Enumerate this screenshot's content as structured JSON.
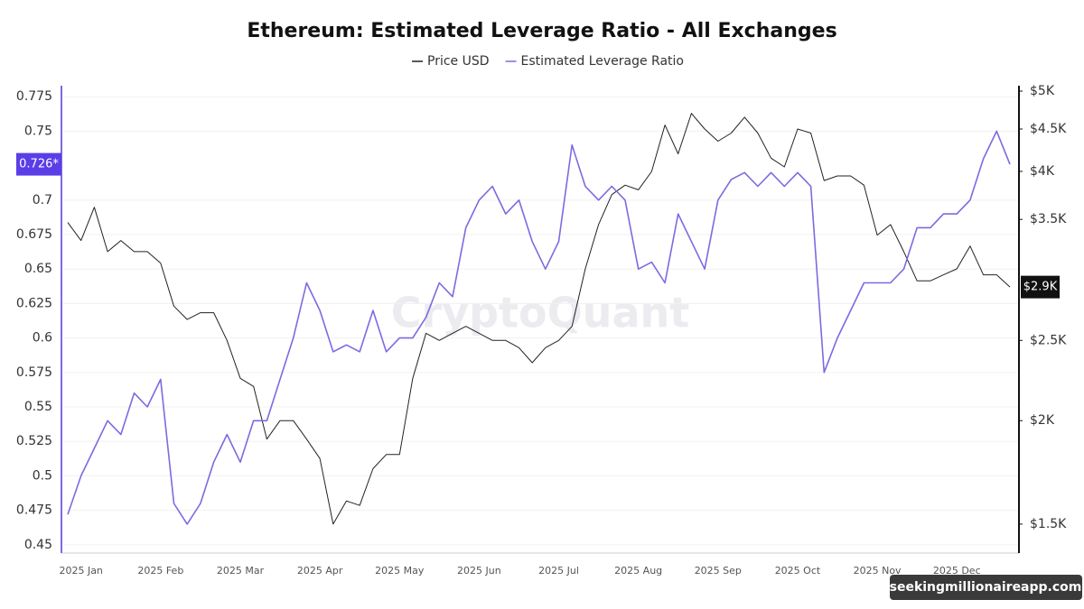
{
  "chart_data": {
    "type": "line",
    "title": "Ethereum: Estimated Leverage Ratio - All Exchanges",
    "watermark": "CryptoQuant",
    "source": "seekingmillionaireapp.com",
    "categories": [
      null,
      "2025 Jan",
      null,
      null,
      null,
      null,
      null,
      "2025 Feb",
      null,
      null,
      null,
      null,
      null,
      "2025 Mar",
      null,
      null,
      null,
      null,
      null,
      "2025 Apr",
      null,
      null,
      null,
      null,
      null,
      "2025 May",
      null,
      null,
      null,
      null,
      null,
      "2025 Jun",
      null,
      null,
      null,
      null,
      null,
      "2025 Jul",
      null,
      null,
      null,
      null,
      null,
      "2025 Aug",
      null,
      null,
      null,
      null,
      null,
      "2025 Sep",
      null,
      null,
      null,
      null,
      null,
      "2025 Oct",
      null,
      null,
      null,
      null,
      null,
      "2025 Nov",
      null,
      null,
      null,
      null,
      null,
      "2025 Dec",
      null,
      null,
      null,
      null
    ],
    "series": [
      {
        "name": "Price USD",
        "color": "#222222",
        "axis": "y2",
        "values": [
          3470,
          3300,
          3620,
          3200,
          3300,
          3200,
          3200,
          3100,
          2750,
          2650,
          2700,
          2700,
          2500,
          2250,
          2200,
          1900,
          2000,
          2000,
          1900,
          1800,
          1500,
          1600,
          1580,
          1750,
          1820,
          1820,
          2250,
          2550,
          2500,
          2550,
          2600,
          2550,
          2500,
          2500,
          2450,
          2350,
          2450,
          2500,
          2600,
          3050,
          3450,
          3750,
          3850,
          3800,
          4000,
          4550,
          4200,
          4700,
          4500,
          4350,
          4450,
          4650,
          4450,
          4150,
          4050,
          4500,
          4450,
          3900,
          3950,
          3950,
          3850,
          3350,
          3450,
          3200,
          2950,
          2950,
          3000,
          3050,
          3250,
          3000,
          3000,
          2900
        ],
        "current_value": {
          "value": 2900,
          "label": "$2.9K"
        }
      },
      {
        "name": "Estimated Leverage Ratio",
        "color": "#7b6be0",
        "values": [
          0.472,
          0.5,
          0.52,
          0.54,
          0.53,
          0.56,
          0.55,
          0.57,
          0.48,
          0.465,
          0.48,
          0.51,
          0.53,
          0.51,
          0.54,
          0.54,
          0.57,
          0.6,
          0.64,
          0.62,
          0.59,
          0.595,
          0.59,
          0.62,
          0.59,
          0.6,
          0.6,
          0.615,
          0.64,
          0.63,
          0.68,
          0.7,
          0.71,
          0.69,
          0.7,
          0.67,
          0.65,
          0.67,
          0.74,
          0.71,
          0.7,
          0.71,
          0.7,
          0.65,
          0.655,
          0.64,
          0.69,
          0.67,
          0.65,
          0.7,
          0.715,
          0.72,
          0.71,
          0.72,
          0.71,
          0.72,
          0.71,
          0.575,
          0.6,
          0.62,
          0.64,
          0.64,
          0.64,
          0.65,
          0.68,
          0.68,
          0.69,
          0.69,
          0.7,
          0.73,
          0.75,
          0.726
        ],
        "current_value": {
          "value": 0.726,
          "label": "0.726*"
        }
      }
    ],
    "ylim": [
      0.444,
      0.783
    ],
    "yticks": [
      0.775,
      0.75,
      0.7,
      0.675,
      0.65,
      0.625,
      0.6,
      0.575,
      0.55,
      0.525,
      0.5,
      0.475,
      0.45
    ],
    "y2lim": [
      1384,
      5076
    ],
    "y2log": true,
    "y2ticks": [
      {
        "value": 5000,
        "label": "$5K"
      },
      {
        "value": 4500,
        "label": "$4.5K"
      },
      {
        "value": 4000,
        "label": "$4K"
      },
      {
        "value": 3500,
        "label": "$3.5K"
      },
      {
        "value": 2500,
        "label": "$2.5K"
      },
      {
        "value": 2000,
        "label": "$2K"
      },
      {
        "value": 1500,
        "label": "$1.5K"
      }
    ],
    "grid": true,
    "legend": "top"
  }
}
